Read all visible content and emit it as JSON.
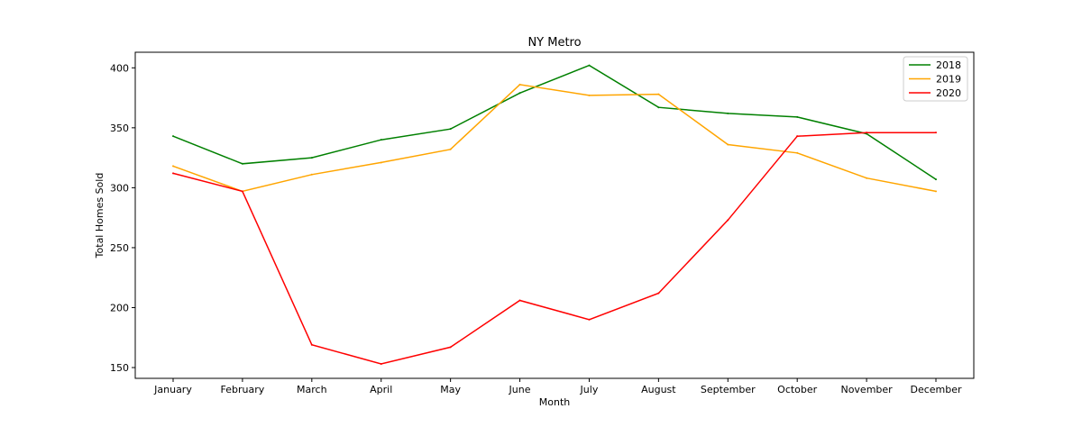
{
  "chart_data": {
    "type": "line",
    "title": "NY Metro",
    "xlabel": "Month",
    "ylabel": "Total Homes Sold",
    "categories": [
      "January",
      "February",
      "March",
      "April",
      "May",
      "June",
      "July",
      "August",
      "September",
      "October",
      "November",
      "December"
    ],
    "ylim": [
      141,
      413
    ],
    "yticks": [
      150,
      200,
      250,
      300,
      350,
      400
    ],
    "grid": false,
    "legend_position": "top-right",
    "series": [
      {
        "name": "2018",
        "color": "#008000",
        "values": [
          343,
          320,
          325,
          340,
          349,
          379,
          402,
          367,
          362,
          359,
          345,
          307
        ]
      },
      {
        "name": "2019",
        "color": "#ffa500",
        "values": [
          318,
          297,
          311,
          321,
          332,
          386,
          377,
          378,
          336,
          329,
          308,
          297
        ]
      },
      {
        "name": "2020",
        "color": "#ff0000",
        "values": [
          312,
          297,
          169,
          153,
          167,
          206,
          190,
          212,
          273,
          343,
          346,
          346
        ]
      }
    ]
  }
}
